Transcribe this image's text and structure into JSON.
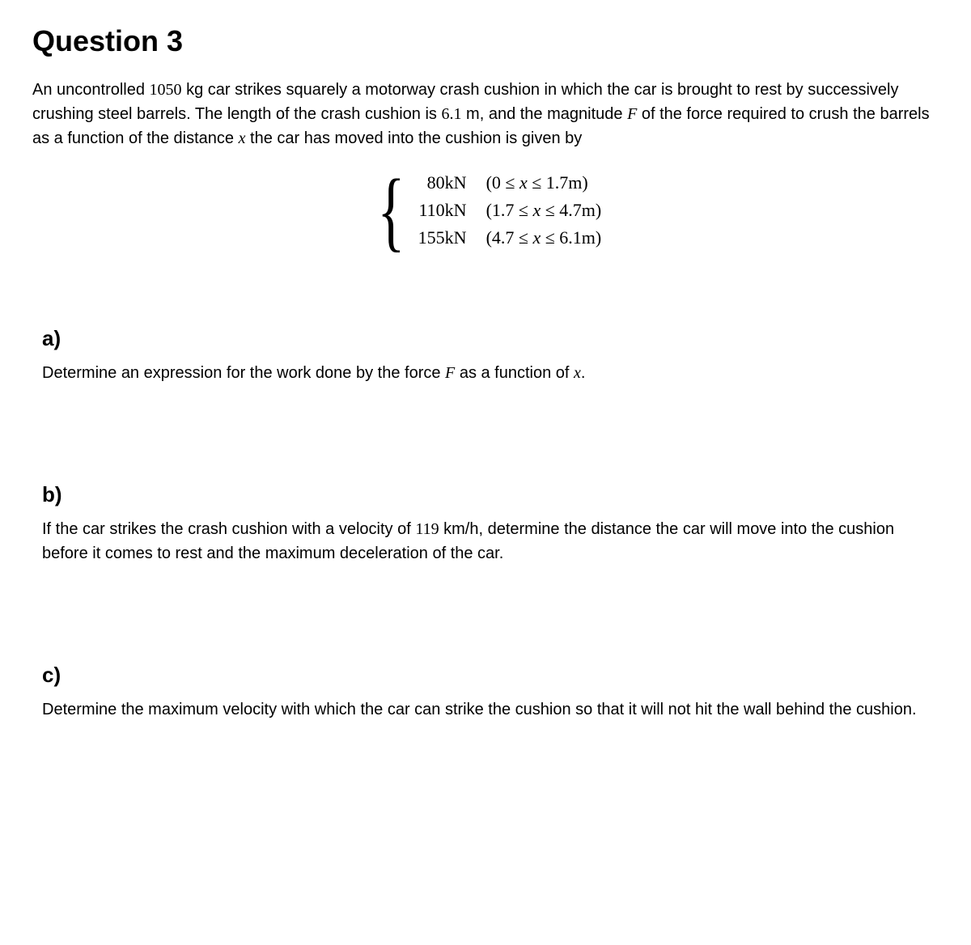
{
  "title": "Question 3",
  "intro": {
    "mass": "1050",
    "mass_unit": "kg",
    "length": "6.1",
    "length_unit": "m",
    "text_prefix": "An uncontrolled ",
    "text_mid1": " car strikes squarely a motorway crash cushion in which the car is brought to rest by successively crushing steel barrels. The length of the crash cushion is ",
    "text_mid2": ", and the magnitude ",
    "force_var": "F",
    "text_mid3": " of the force required to crush the barrels as a function of the distance ",
    "dist_var": "x",
    "text_end": " the car has moved into the cushion is given by"
  },
  "piecewise": {
    "rows": [
      {
        "force": "80kN",
        "range": "(0 ≤ x ≤ 1.7m)"
      },
      {
        "force": "110kN",
        "range": "(1.7 ≤ x ≤ 4.7m)"
      },
      {
        "force": "155kN",
        "range": "(4.7 ≤ x ≤ 6.1m)"
      }
    ]
  },
  "parts": {
    "a": {
      "label": "a)",
      "prefix": "Determine an expression for the work done by the force ",
      "var1": "F",
      "mid": " as a function of ",
      "var2": "x",
      "suffix": "."
    },
    "b": {
      "label": "b)",
      "prefix": "If the car strikes the crash cushion with a velocity of ",
      "velocity": "119",
      "velocity_unit": "km/h",
      "suffix": ", determine the distance the car will move into the cushion before it comes to rest and the maximum deceleration of the car."
    },
    "c": {
      "label": "c)",
      "text": "Determine the maximum velocity with which the car can strike the cushion so that it will not hit the wall behind the cushion."
    }
  },
  "typography": {
    "title_fontsize": 36,
    "body_fontsize": 20,
    "subpart_label_fontsize": 26,
    "math_fontsize": 22,
    "background_color": "#ffffff",
    "text_color": "#000000"
  }
}
